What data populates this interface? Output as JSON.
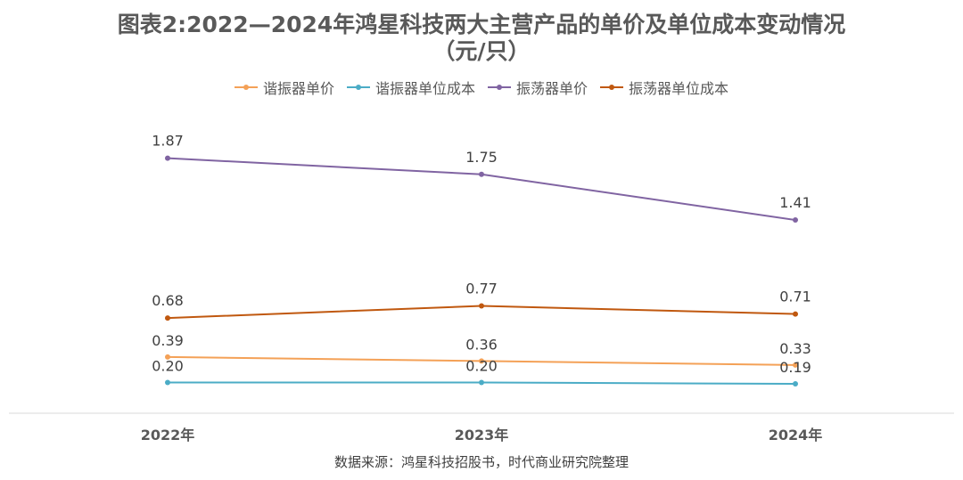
{
  "chart_data": {
    "type": "line",
    "title_line1": "图表2:2022—2024年鸿星科技两大主营产品的单价及单位成本变动情况",
    "title_line2": "（元/只）",
    "categories": [
      "2022年",
      "2023年",
      "2024年"
    ],
    "series": [
      {
        "name": "谐振器单价",
        "values": [
          0.39,
          0.36,
          0.33
        ],
        "color": "#F4A157"
      },
      {
        "name": "谐振器单位成本",
        "values": [
          0.2,
          0.2,
          0.19
        ],
        "color": "#4BACC6"
      },
      {
        "name": "振荡器单价",
        "values": [
          1.87,
          1.75,
          1.41
        ],
        "color": "#8064A2"
      },
      {
        "name": "振荡器单位成本",
        "values": [
          0.68,
          0.77,
          0.71
        ],
        "color": "#C0580F"
      }
    ],
    "legend_position": "top",
    "grid": false
  },
  "source": "数据来源：鸿星科技招股书，时代商业研究院整理"
}
